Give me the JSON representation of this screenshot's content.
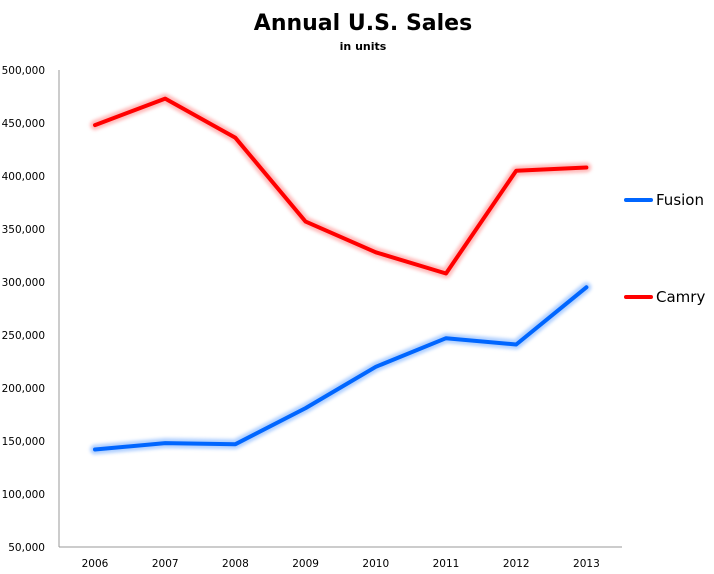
{
  "chart_data": {
    "type": "line",
    "title": "Annual U.S. Sales",
    "subtitle": "in units",
    "x": [
      "2006",
      "2007",
      "2008",
      "2009",
      "2010",
      "2011",
      "2012",
      "2013"
    ],
    "ylim": [
      50000,
      500000
    ],
    "y_ticks": [
      50000,
      100000,
      150000,
      200000,
      250000,
      300000,
      350000,
      400000,
      450000,
      500000
    ],
    "y_tick_labels": [
      "50,000",
      "100,000",
      "150,000",
      "200,000",
      "250,000",
      "300,000",
      "350,000",
      "400,000",
      "450,000",
      "500,000"
    ],
    "grid": false,
    "legend_placement": "right",
    "series": [
      {
        "name": "Fusion",
        "color": "#0066ff",
        "glow_color": "#9ec5ff",
        "values": [
          142000,
          148000,
          147000,
          181000,
          220000,
          247000,
          241000,
          295000
        ]
      },
      {
        "name": "Camry",
        "color": "#ff0000",
        "glow_color": "#ffaaaa",
        "values": [
          448000,
          473000,
          436000,
          357000,
          328000,
          308000,
          405000,
          408000
        ]
      }
    ]
  }
}
